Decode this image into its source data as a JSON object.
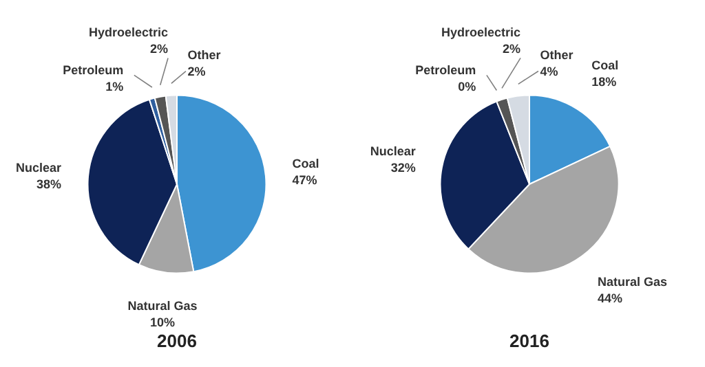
{
  "chart_data": [
    {
      "type": "pie",
      "title": "2006",
      "categories": [
        "Coal",
        "Natural Gas",
        "Nuclear",
        "Petroleum",
        "Hydroelectric",
        "Other"
      ],
      "values": [
        47,
        10,
        38,
        1,
        2,
        2
      ],
      "value_labels": [
        "47%",
        "10%",
        "38%",
        "1%",
        "2%",
        "2%"
      ],
      "colors": [
        "#3d94d2",
        "#a5a5a5",
        "#0e2356",
        "#2f5f9f",
        "#555555",
        "#d5dbe3"
      ]
    },
    {
      "type": "pie",
      "title": "2016",
      "categories": [
        "Coal",
        "Natural Gas",
        "Nuclear",
        "Petroleum",
        "Hydroelectric",
        "Other"
      ],
      "values": [
        18,
        44,
        32,
        0,
        2,
        4
      ],
      "value_labels": [
        "18%",
        "44%",
        "32%",
        "0%",
        "2%",
        "4%"
      ],
      "colors": [
        "#3d94d2",
        "#a5a5a5",
        "#0e2356",
        "#2f5f9f",
        "#555555",
        "#d5dbe3"
      ]
    }
  ]
}
